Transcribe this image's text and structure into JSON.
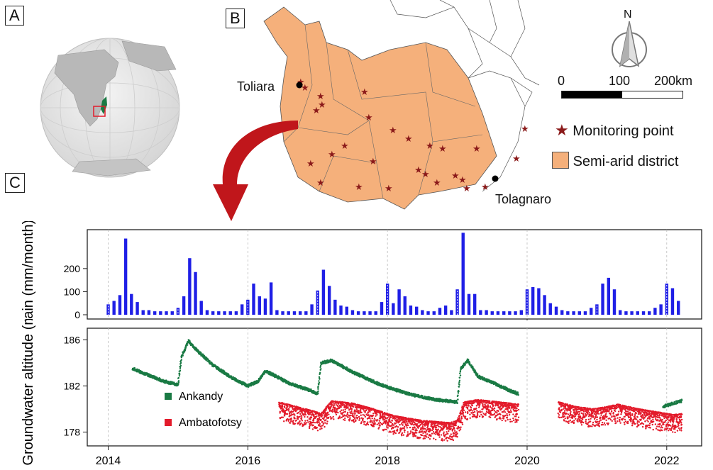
{
  "panels": {
    "a": "A",
    "b": "B",
    "c": "C"
  },
  "map": {
    "cities": [
      {
        "name": "Toliara"
      },
      {
        "name": "Tolagnaro"
      }
    ],
    "scalebar": {
      "labels": [
        "0",
        "100",
        "200km"
      ]
    },
    "north_label": "N",
    "legend": [
      {
        "label": "Monitoring point",
        "color": "#8b1a1a"
      },
      {
        "label": "Semi-arid district",
        "color": "#f5b07b"
      }
    ]
  },
  "colors": {
    "rain": "#1f1fe6",
    "ankandy": "#1a7a44",
    "ambatofotsy": "#e31b2b",
    "district": "#f5b07b",
    "arrow": "#c0161b"
  },
  "chart_data": [
    {
      "type": "bar",
      "title": "",
      "ylabel": "Rain (mm/month)",
      "ylim": [
        0,
        350
      ],
      "yticks": [
        0,
        100,
        200
      ],
      "x": [
        2014.0,
        2014.083,
        2014.167,
        2014.25,
        2014.333,
        2014.417,
        2014.5,
        2014.583,
        2014.667,
        2014.75,
        2014.833,
        2014.917,
        2015.0,
        2015.083,
        2015.167,
        2015.25,
        2015.333,
        2015.417,
        2015.5,
        2015.583,
        2015.667,
        2015.75,
        2015.833,
        2015.917,
        2016.0,
        2016.083,
        2016.167,
        2016.25,
        2016.333,
        2016.417,
        2016.5,
        2016.583,
        2016.667,
        2016.75,
        2016.833,
        2016.917,
        2017.0,
        2017.083,
        2017.167,
        2017.25,
        2017.333,
        2017.417,
        2017.5,
        2017.583,
        2017.667,
        2017.75,
        2017.833,
        2017.917,
        2018.0,
        2018.083,
        2018.167,
        2018.25,
        2018.333,
        2018.417,
        2018.5,
        2018.583,
        2018.667,
        2018.75,
        2018.833,
        2018.917,
        2019.0,
        2019.083,
        2019.167,
        2019.25,
        2019.333,
        2019.417,
        2019.5,
        2019.583,
        2019.667,
        2019.75,
        2019.833,
        2019.917,
        2020.0,
        2020.083,
        2020.167,
        2020.25,
        2020.333,
        2020.417,
        2020.5,
        2020.583,
        2020.667,
        2020.75,
        2020.833,
        2020.917,
        2021.0,
        2021.083,
        2021.167,
        2021.25,
        2021.333,
        2021.417,
        2021.5,
        2021.583,
        2021.667,
        2021.75,
        2021.833,
        2021.917,
        2022.0,
        2022.083,
        2022.167
      ],
      "values": [
        45,
        60,
        85,
        330,
        90,
        55,
        20,
        20,
        15,
        15,
        15,
        15,
        30,
        80,
        245,
        185,
        60,
        20,
        15,
        15,
        15,
        15,
        15,
        45,
        65,
        135,
        80,
        70,
        140,
        20,
        15,
        15,
        15,
        15,
        15,
        45,
        105,
        195,
        125,
        65,
        40,
        35,
        20,
        15,
        15,
        15,
        15,
        55,
        135,
        50,
        110,
        80,
        40,
        35,
        20,
        15,
        15,
        30,
        40,
        20,
        110,
        355,
        90,
        90,
        20,
        20,
        15,
        15,
        15,
        15,
        15,
        20,
        110,
        120,
        115,
        85,
        50,
        35,
        20,
        15,
        15,
        15,
        15,
        30,
        45,
        135,
        160,
        110,
        20,
        15,
        15,
        15,
        15,
        15,
        30,
        45,
        135,
        115,
        60
      ],
      "highlight_years": [
        2014,
        2015,
        2016,
        2017,
        2018,
        2019,
        2020,
        2021,
        2022
      ]
    },
    {
      "type": "scatter",
      "title": "",
      "ylabel": "Groundwater altitude (m)",
      "xlabel": "",
      "xlim": [
        2013.7,
        2022.5
      ],
      "ylim": [
        176.8,
        187
      ],
      "yticks": [
        178,
        182,
        186
      ],
      "xticks": [
        2014,
        2016,
        2018,
        2020,
        2022
      ],
      "xtick_labels": [
        "2014",
        "2016",
        "2018",
        "2020",
        "2022"
      ],
      "series": [
        {
          "name": "Ankandy",
          "color": "#1a7a44",
          "x": [
            2014.35,
            2014.55,
            2014.8,
            2015.0,
            2015.05,
            2015.15,
            2015.25,
            2015.5,
            2015.8,
            2016.0,
            2016.15,
            2016.25,
            2016.35,
            2016.6,
            2016.9,
            2017.0,
            2017.05,
            2017.2,
            2017.5,
            2017.9,
            2018.3,
            2018.7,
            2019.0,
            2019.05,
            2019.15,
            2019.3,
            2019.5,
            2019.75,
            2019.88,
            2021.95,
            2022.05,
            2022.15,
            2022.22
          ],
          "y": [
            183.5,
            183.0,
            182.4,
            182.1,
            184.5,
            185.9,
            185.2,
            183.8,
            182.6,
            182.0,
            182.4,
            183.3,
            183.0,
            182.2,
            181.6,
            181.3,
            184.0,
            184.2,
            183.2,
            182.1,
            181.3,
            180.8,
            180.6,
            183.5,
            184.2,
            182.8,
            182.3,
            181.6,
            181.3,
            180.2,
            180.4,
            180.6,
            180.7
          ],
          "spread": 0.25
        },
        {
          "name": "Ambatofotsy",
          "color": "#e31b2b",
          "x": [
            2016.45,
            2016.7,
            2016.95,
            2017.05,
            2017.2,
            2017.5,
            2017.8,
            2018.1,
            2018.5,
            2018.9,
            2019.0,
            2019.1,
            2019.3,
            2019.6,
            2019.88,
            2020.45,
            2020.7,
            2020.95,
            2021.15,
            2021.3,
            2021.6,
            2021.9,
            2022.1,
            2022.22
          ],
          "y": [
            180.6,
            180.2,
            179.8,
            179.6,
            180.7,
            180.5,
            180.0,
            179.4,
            179.0,
            178.8,
            179.0,
            180.6,
            180.8,
            180.6,
            180.4,
            180.6,
            180.2,
            180.0,
            180.2,
            180.4,
            180.0,
            179.7,
            179.5,
            179.6
          ],
          "spread": 1.6
        }
      ]
    }
  ]
}
